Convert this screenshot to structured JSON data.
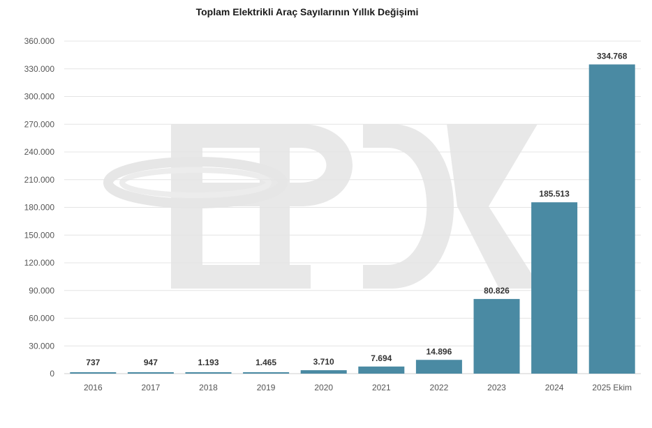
{
  "chart_data": {
    "type": "bar",
    "title": "Toplam Elektrikli Araç Sayılarının Yıllık Değişimi",
    "xlabel": "",
    "ylabel": "",
    "categories": [
      "2016",
      "2017",
      "2018",
      "2019",
      "2020",
      "2021",
      "2022",
      "2023",
      "2024",
      "2025 Ekim"
    ],
    "values": [
      737,
      947,
      1193,
      1465,
      3710,
      7694,
      14896,
      80826,
      185513,
      334768
    ],
    "value_labels": [
      "737",
      "947",
      "1.193",
      "1.465",
      "3.710",
      "7.694",
      "14.896",
      "80.826",
      "185.513",
      "334.768"
    ],
    "ylim": [
      0,
      360000
    ],
    "yticks": [
      0,
      30000,
      60000,
      90000,
      120000,
      150000,
      180000,
      210000,
      240000,
      270000,
      300000,
      330000,
      360000
    ],
    "ytick_labels": [
      "0",
      "30.000",
      "60.000",
      "90.000",
      "120.000",
      "150.000",
      "180.000",
      "210.000",
      "240.000",
      "270.000",
      "300.000",
      "330.000",
      "360.000"
    ],
    "grid": true,
    "legend": "none",
    "bar_color": "#4a8aa3",
    "watermark": "EPDK"
  }
}
